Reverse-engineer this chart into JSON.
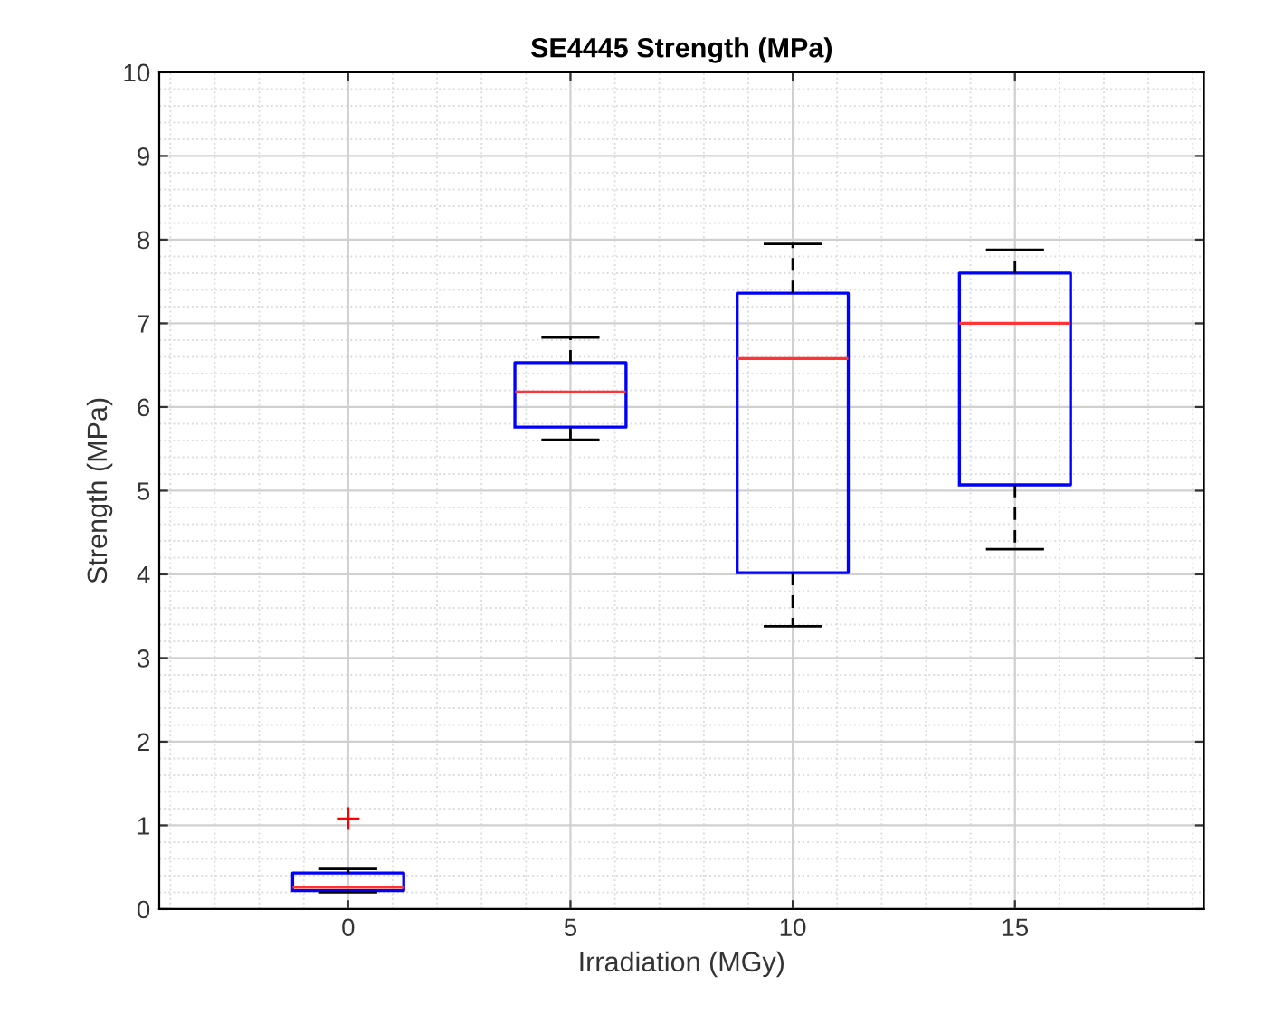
{
  "chart_data": {
    "type": "box",
    "title": "SE4445 Strength (MPa)",
    "xlabel": "Irradiation (MGy)",
    "ylabel": "Strength (MPa)",
    "categories": [
      "0",
      "5",
      "10",
      "15"
    ],
    "boxes": [
      {
        "low": 0.2,
        "q1": 0.22,
        "median": 0.26,
        "q3": 0.43,
        "high": 0.48,
        "outliers": [
          1.08
        ]
      },
      {
        "low": 5.61,
        "q1": 5.76,
        "median": 6.18,
        "q3": 6.53,
        "high": 6.83
      },
      {
        "low": 3.38,
        "q1": 4.02,
        "median": 6.58,
        "q3": 7.36,
        "high": 7.95
      },
      {
        "low": 4.3,
        "q1": 5.07,
        "median": 7.0,
        "q3": 7.6,
        "high": 7.88
      }
    ],
    "color": "#0000ff",
    "ylim": [
      0,
      10
    ],
    "yticks": [
      0,
      1,
      2,
      3,
      4,
      5,
      6,
      7,
      8,
      9,
      10
    ],
    "grid": true
  }
}
